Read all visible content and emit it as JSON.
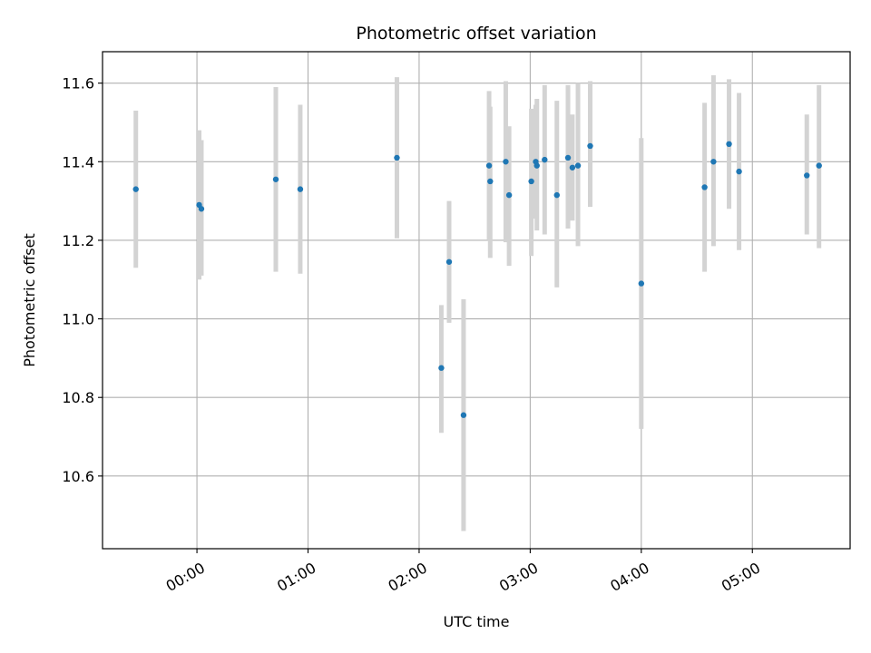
{
  "chart_data": {
    "type": "scatter",
    "title": "Photometric offset variation",
    "xlabel": "UTC time",
    "ylabel": "Photometric offset",
    "x_unit": "hours (UTC)",
    "xlim": [
      -0.85,
      5.88
    ],
    "ylim": [
      10.415,
      11.68
    ],
    "x_ticks": [
      0,
      1,
      2,
      3,
      4,
      5
    ],
    "x_tick_labels": [
      "00:00",
      "01:00",
      "02:00",
      "03:00",
      "04:00",
      "05:00"
    ],
    "y_ticks": [
      10.6,
      10.8,
      11.0,
      11.2,
      11.4,
      11.6
    ],
    "y_tick_labels": [
      "10.6",
      "10.8",
      "11.0",
      "11.2",
      "11.4",
      "11.6"
    ],
    "grid": true,
    "colors": {
      "point": "#1f77b4",
      "errorbar": "#d3d3d3"
    },
    "series": [
      {
        "points": [
          {
            "x": -0.55,
            "y": 11.33,
            "lo": 11.13,
            "hi": 11.53
          },
          {
            "x": 0.02,
            "y": 11.29,
            "lo": 11.1,
            "hi": 11.48
          },
          {
            "x": 0.04,
            "y": 11.28,
            "lo": 11.11,
            "hi": 11.455
          },
          {
            "x": 0.71,
            "y": 11.355,
            "lo": 11.12,
            "hi": 11.59
          },
          {
            "x": 0.93,
            "y": 11.33,
            "lo": 11.115,
            "hi": 11.545
          },
          {
            "x": 1.8,
            "y": 11.41,
            "lo": 11.205,
            "hi": 11.615
          },
          {
            "x": 2.2,
            "y": 10.875,
            "lo": 10.71,
            "hi": 11.035
          },
          {
            "x": 2.27,
            "y": 11.145,
            "lo": 10.99,
            "hi": 11.3
          },
          {
            "x": 2.4,
            "y": 10.755,
            "lo": 10.46,
            "hi": 11.05
          },
          {
            "x": 2.63,
            "y": 11.39,
            "lo": 11.2,
            "hi": 11.58
          },
          {
            "x": 2.64,
            "y": 11.35,
            "lo": 11.155,
            "hi": 11.54
          },
          {
            "x": 2.78,
            "y": 11.4,
            "lo": 11.195,
            "hi": 11.605
          },
          {
            "x": 2.81,
            "y": 11.315,
            "lo": 11.135,
            "hi": 11.49
          },
          {
            "x": 3.01,
            "y": 11.35,
            "lo": 11.16,
            "hi": 11.535
          },
          {
            "x": 3.05,
            "y": 11.4,
            "lo": 11.255,
            "hi": 11.545
          },
          {
            "x": 3.06,
            "y": 11.39,
            "lo": 11.225,
            "hi": 11.56
          },
          {
            "x": 3.13,
            "y": 11.405,
            "lo": 11.215,
            "hi": 11.595
          },
          {
            "x": 3.24,
            "y": 11.315,
            "lo": 11.08,
            "hi": 11.555
          },
          {
            "x": 3.34,
            "y": 11.41,
            "lo": 11.23,
            "hi": 11.595
          },
          {
            "x": 3.38,
            "y": 11.385,
            "lo": 11.25,
            "hi": 11.52
          },
          {
            "x": 3.43,
            "y": 11.39,
            "lo": 11.185,
            "hi": 11.6
          },
          {
            "x": 3.54,
            "y": 11.44,
            "lo": 11.285,
            "hi": 11.605
          },
          {
            "x": 4.0,
            "y": 11.09,
            "lo": 10.72,
            "hi": 11.46
          },
          {
            "x": 4.57,
            "y": 11.335,
            "lo": 11.12,
            "hi": 11.55
          },
          {
            "x": 4.65,
            "y": 11.4,
            "lo": 11.185,
            "hi": 11.62
          },
          {
            "x": 4.79,
            "y": 11.445,
            "lo": 11.28,
            "hi": 11.61
          },
          {
            "x": 4.88,
            "y": 11.375,
            "lo": 11.175,
            "hi": 11.575
          },
          {
            "x": 5.49,
            "y": 11.365,
            "lo": 11.215,
            "hi": 11.52
          },
          {
            "x": 5.6,
            "y": 11.39,
            "lo": 11.18,
            "hi": 11.595
          }
        ]
      }
    ]
  }
}
